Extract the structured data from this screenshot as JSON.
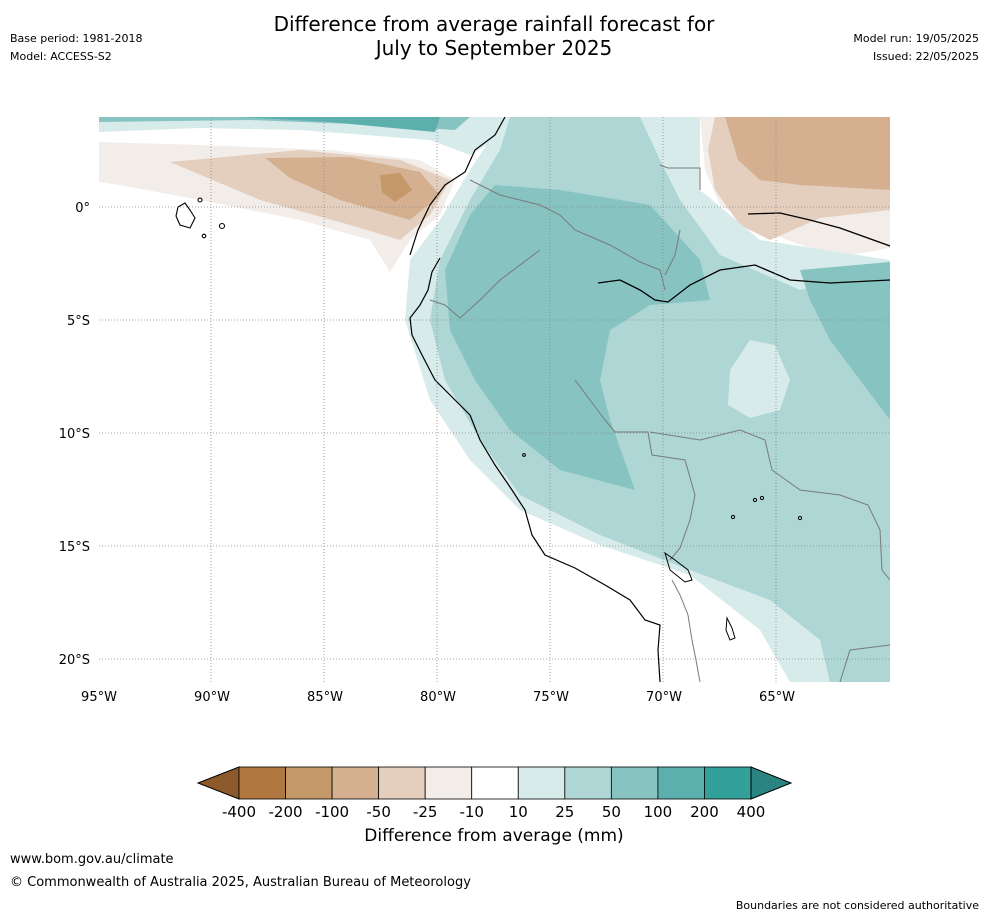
{
  "title_line1": "Difference from average rainfall forecast for",
  "title_line2": "July to September 2025",
  "meta_left": {
    "base_period": "Base period: 1981-2018",
    "model": "Model: ACCESS-S2"
  },
  "meta_right": {
    "model_run": "Model run: 19/05/2025",
    "issued": "Issued: 22/05/2025"
  },
  "lat_labels": [
    "0°",
    "5°S",
    "10°S",
    "15°S",
    "20°S"
  ],
  "lon_labels": [
    "95°W",
    "90°W",
    "85°W",
    "80°W",
    "75°W",
    "70°W",
    "65°W"
  ],
  "colorbar": {
    "label": "Difference from average (mm)",
    "ticks": [
      "-400",
      "-200",
      "-100",
      "-50",
      "-25",
      "-10",
      "10",
      "25",
      "50",
      "100",
      "200",
      "400"
    ],
    "colors": [
      "#8c5a2b",
      "#b07840",
      "#c49868",
      "#d4b090",
      "#e4cfbf",
      "#f2ede9",
      "#ffffff",
      "#d6ebea",
      "#add6d5",
      "#86c3c1",
      "#5bb0ae",
      "#33a09a",
      "#2a8481"
    ]
  },
  "footer": {
    "url": "www.bom.gov.au/climate",
    "copyright": "© Commonwealth of Australia 2025, Australian Bureau of Meteorology",
    "disclaimer": "Boundaries are not considered authoritative"
  }
}
